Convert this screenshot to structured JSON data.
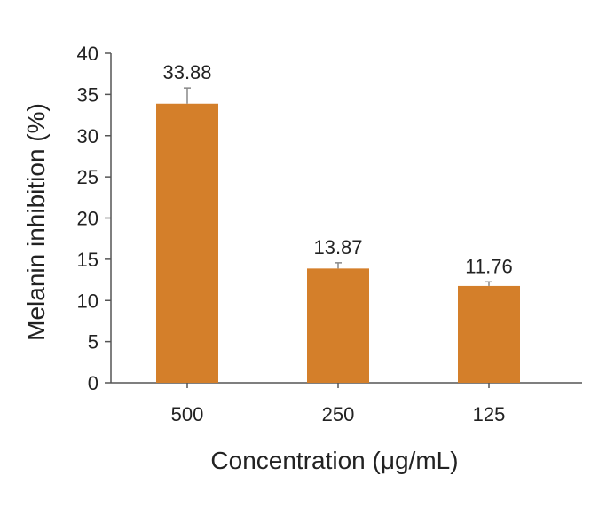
{
  "chart_data": {
    "type": "bar",
    "categories": [
      "500",
      "250",
      "125"
    ],
    "values": [
      33.88,
      13.87,
      11.76
    ],
    "errors": [
      1.9,
      0.7,
      0.5
    ],
    "data_labels": [
      "33.88",
      "13.87",
      "11.76"
    ],
    "title": "",
    "xlabel": "Concentration (μg/mL)",
    "ylabel": "Melanin inhibition (%)",
    "ylim": [
      0,
      40
    ],
    "yticks": [
      0,
      5,
      10,
      15,
      20,
      25,
      30,
      35,
      40
    ],
    "grid": false,
    "legend": "none",
    "colors": {
      "bar": "#d47f2a",
      "axis": "#555555",
      "error_bar": "#888888"
    }
  }
}
